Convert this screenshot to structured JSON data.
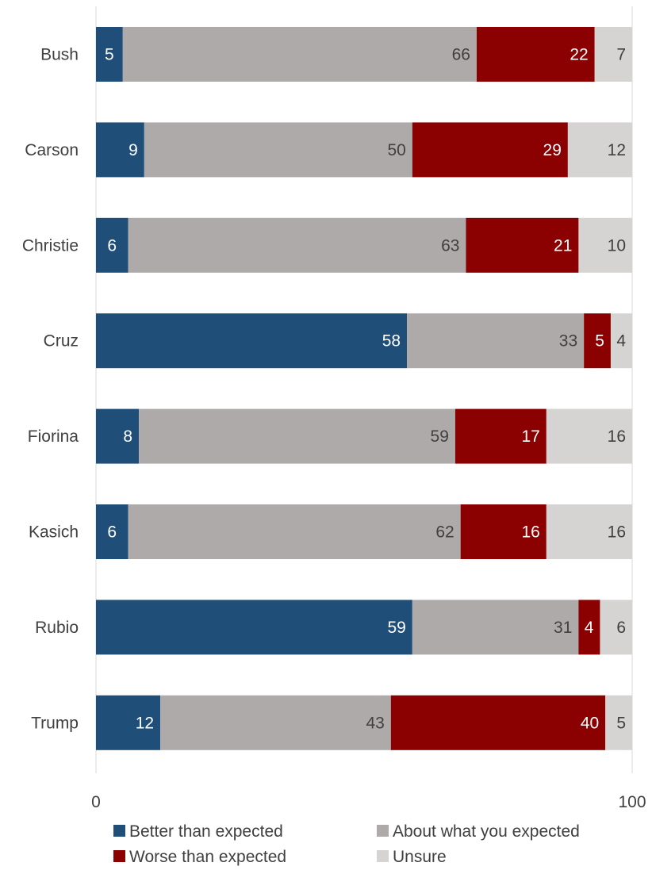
{
  "chart_data": {
    "type": "bar",
    "orientation": "horizontal",
    "stacked": true,
    "categories": [
      "Bush",
      "Carson",
      "Christie",
      "Cruz",
      "Fiorina",
      "Kasich",
      "Rubio",
      "Trump"
    ],
    "series": [
      {
        "name": "Better than expected",
        "color": "#1F4E79",
        "label_color": "#FFFFFF",
        "values": [
          5,
          9,
          6,
          58,
          8,
          6,
          59,
          12
        ]
      },
      {
        "name": "About what you expected",
        "color": "#AEAAAA",
        "label_color": "#404040",
        "values": [
          66,
          50,
          63,
          33,
          59,
          62,
          31,
          43
        ]
      },
      {
        "name": "Worse than expected",
        "color": "#8B0000",
        "label_color": "#FFFFFF",
        "values": [
          22,
          29,
          21,
          5,
          17,
          16,
          4,
          40
        ]
      },
      {
        "name": "Unsure",
        "color": "#D6D3D3",
        "label_color": "#404040",
        "values": [
          7,
          12,
          10,
          4,
          16,
          16,
          6,
          5
        ]
      }
    ],
    "xlim": [
      0,
      100
    ],
    "x_ticks": [
      "0",
      "100"
    ],
    "grid": false,
    "legend_position": "bottom",
    "data_labels": true
  }
}
